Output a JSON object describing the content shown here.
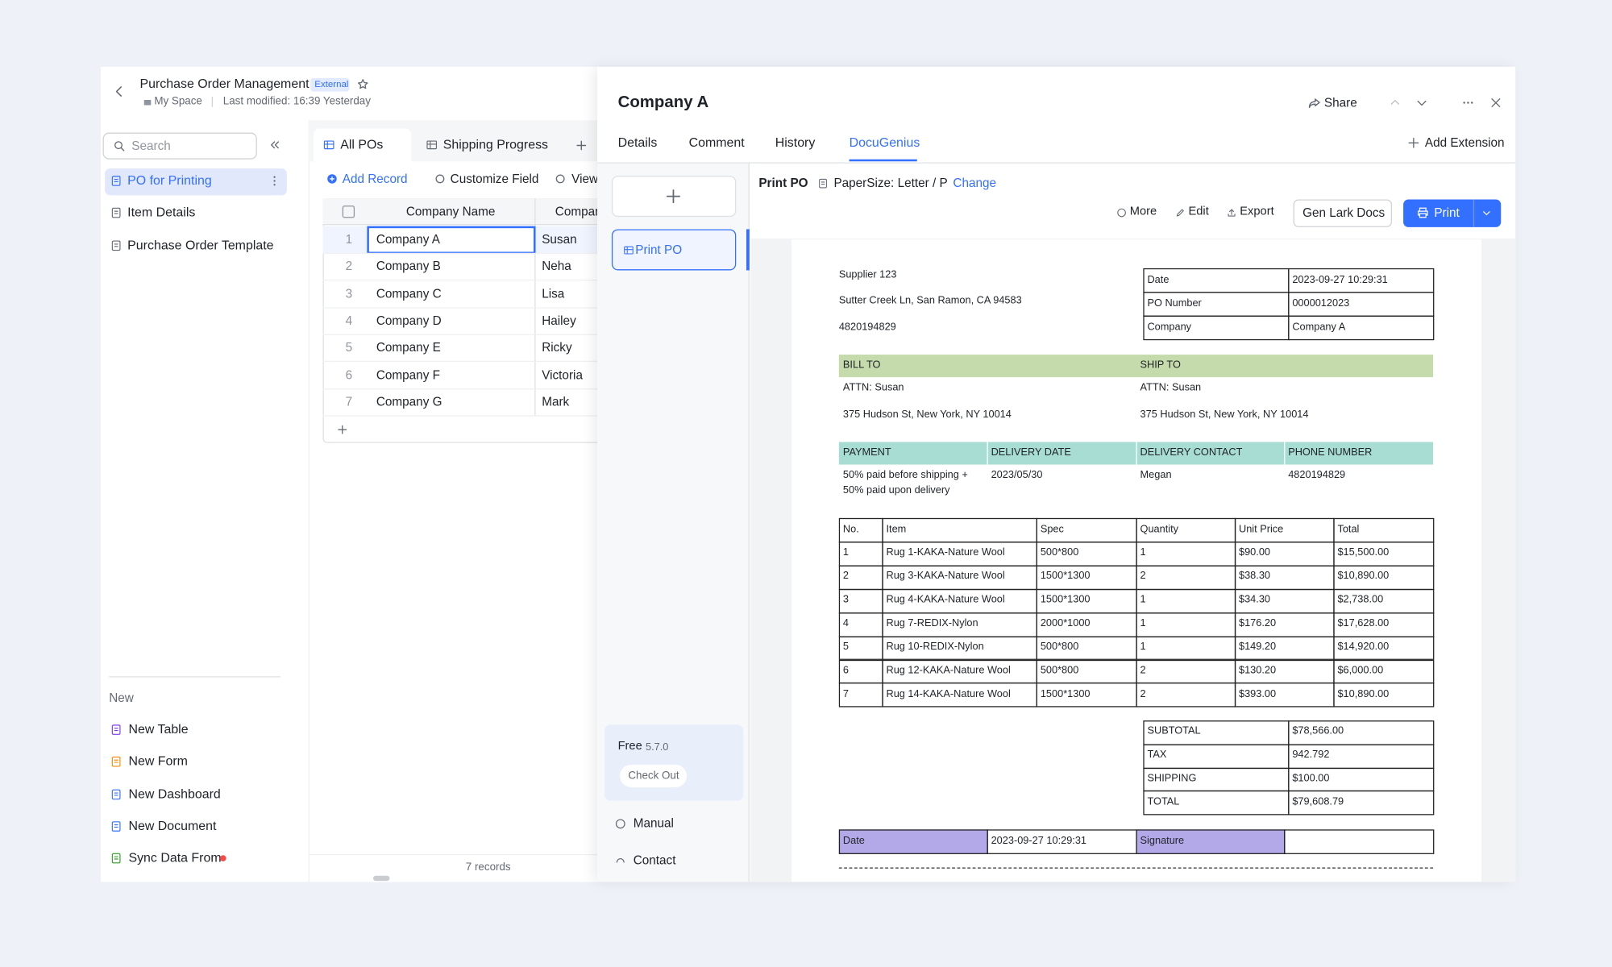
{
  "header": {
    "title": "Purchase Order Management",
    "badge": "External",
    "space": "My Space",
    "modified": "Last modified: 16:39 Yesterday"
  },
  "sidebar": {
    "search": "Search",
    "items": [
      "PO for Printing",
      "Item Details",
      "Purchase Order Template"
    ],
    "new_label": "New",
    "new_items": [
      "New Table",
      "New Form",
      "New Dashboard",
      "New Document",
      "Sync Data From"
    ]
  },
  "grid_view": {
    "tabs": [
      "All POs",
      "Shipping Progress"
    ],
    "toolbar": [
      "Add Record",
      "Customize Field",
      "View"
    ],
    "columns": [
      "Company Name",
      "Company"
    ],
    "rows": [
      [
        "1",
        "Company A",
        "Susan"
      ],
      [
        "2",
        "Company B",
        "Neha"
      ],
      [
        "3",
        "Company C",
        "Lisa"
      ],
      [
        "4",
        "Company D",
        "Hailey"
      ],
      [
        "5",
        "Company E",
        "Ricky"
      ],
      [
        "6",
        "Company F",
        "Victoria"
      ],
      [
        "7",
        "Company G",
        "Mark"
      ]
    ],
    "footer": "7 records"
  },
  "panel": {
    "title": "Company A",
    "share": "Share",
    "tabs": [
      "Details",
      "Comment",
      "History",
      "DocuGenius"
    ],
    "add_extension": "Add Extension",
    "template": "Print PO",
    "plan": "Free",
    "version": "5.7.0",
    "check_out": "Check Out",
    "manual": "Manual",
    "contact": "Contact",
    "toolbar": {
      "name": "Print PO",
      "paper": "PaperSize: Letter / P",
      "change": "Change",
      "more": "More",
      "edit": "Edit",
      "export": "Export",
      "gen": "Gen Lark Docs",
      "print": "Print"
    }
  },
  "document": {
    "supplier": [
      "Supplier 123",
      "Sutter Creek Ln, San Ramon, CA 94583",
      "4820194829"
    ],
    "info": [
      [
        "Date",
        "2023-09-27 10:29:31"
      ],
      [
        "PO Number",
        "0000012023"
      ],
      [
        "Company",
        "Company A"
      ]
    ],
    "address_headers": [
      "BILL TO",
      "SHIP TO"
    ],
    "bill_to": [
      "ATTN: Susan",
      "375 Hudson St, New York, NY 10014"
    ],
    "ship_to": [
      "ATTN: Susan",
      "375 Hudson St, New York, NY 10014"
    ],
    "payment_headers": [
      "PAYMENT",
      "DELIVERY DATE",
      "DELIVERY CONTACT",
      "PHONE NUMBER"
    ],
    "payment": [
      "50% paid before shipping +",
      "50% paid upon delivery"
    ],
    "delivery_date": "2023/05/30",
    "delivery_contact": "Megan",
    "phone": "4820194829",
    "item_headers": [
      "No.",
      "Item",
      "Spec",
      "Quantity",
      "Unit Price",
      "Total"
    ],
    "items": [
      [
        "1",
        "Rug 1-KAKA-Nature Wool",
        "500*800",
        "1",
        "$90.00",
        "$15,500.00"
      ],
      [
        "2",
        "Rug 3-KAKA-Nature Wool",
        "1500*1300",
        "2",
        "$38.30",
        "$10,890.00"
      ],
      [
        "3",
        "Rug 4-KAKA-Nature Wool",
        "1500*1300",
        "1",
        "$34.30",
        "$2,738.00"
      ],
      [
        "4",
        "Rug 7-REDIX-Nylon",
        "2000*1000",
        "1",
        "$176.20",
        "$17,628.00"
      ],
      [
        "5",
        "Rug 10-REDIX-Nylon",
        "500*800",
        "1",
        "$149.20",
        "$14,920.00"
      ],
      [
        "6",
        "Rug 12-KAKA-Nature Wool",
        "500*800",
        "2",
        "$130.20",
        "$6,000.00"
      ],
      [
        "7",
        "Rug 14-KAKA-Nature Wool",
        "1500*1300",
        "2",
        "$393.00",
        "$10,890.00"
      ]
    ],
    "totals": [
      [
        "SUBTOTAL",
        "$78,566.00"
      ],
      [
        "TAX",
        "942.792"
      ],
      [
        "SHIPPING",
        "$100.00"
      ],
      [
        "TOTAL",
        "$79,608.79"
      ]
    ],
    "signature": [
      "Date",
      "2023-09-27 10:29:31",
      "Signature"
    ]
  }
}
